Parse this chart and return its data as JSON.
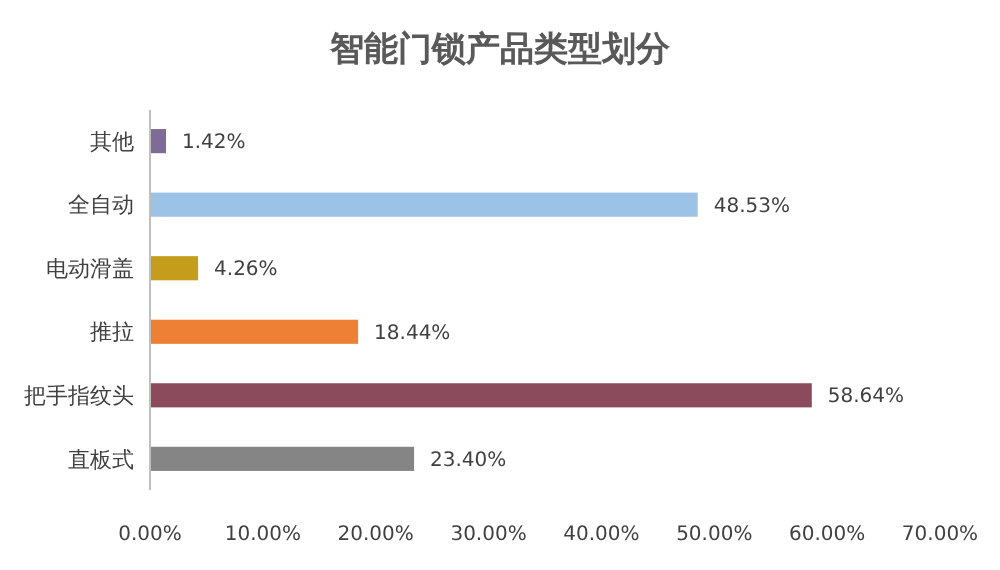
{
  "chart_data": {
    "type": "bar",
    "orientation": "horizontal",
    "title": "智能门锁产品类型划分",
    "categories": [
      "其他",
      "全自动",
      "电动滑盖",
      "推拉",
      "把手指纹头",
      "直板式"
    ],
    "values": [
      1.42,
      48.53,
      4.26,
      18.44,
      58.64,
      23.4
    ],
    "value_labels": [
      "1.42%",
      "48.53%",
      "4.26%",
      "18.44%",
      "58.64%",
      "23.40%"
    ],
    "colors": [
      "#7e6b98",
      "#9cc2e5",
      "#c59d1c",
      "#ed8035",
      "#8c4a5d",
      "#858585"
    ],
    "xlim": [
      0,
      70
    ],
    "xticks": [
      {
        "value": 0,
        "label": "0.00%"
      },
      {
        "value": 10,
        "label": "10.00%"
      },
      {
        "value": 20,
        "label": "20.00%"
      },
      {
        "value": 30,
        "label": "30.00%"
      },
      {
        "value": 40,
        "label": "40.00%"
      },
      {
        "value": 50,
        "label": "50.00%"
      },
      {
        "value": 60,
        "label": "60.00%"
      },
      {
        "value": 70,
        "label": "70.00%"
      }
    ]
  }
}
